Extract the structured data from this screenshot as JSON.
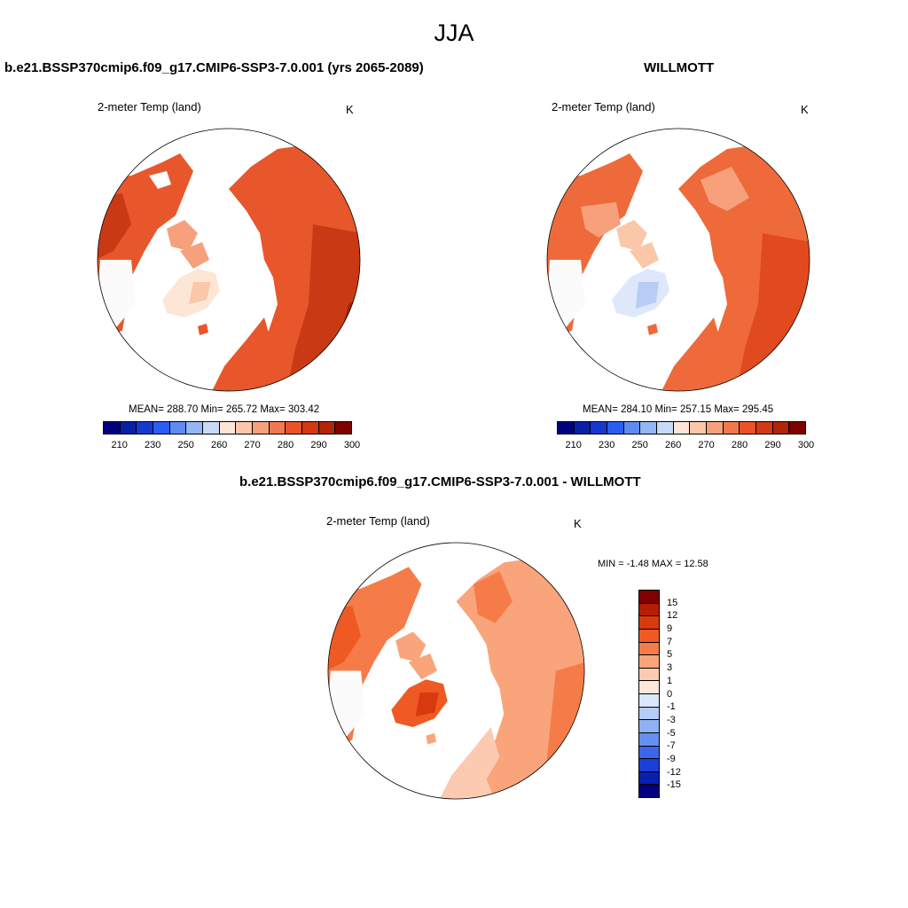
{
  "title": "JJA",
  "panels": {
    "model": {
      "title": "b.e21.BSSP370cmip6.f09_g17.CMIP6-SSP3-7.0.001 (yrs 2065-2089)",
      "variable": "2-meter Temp (land)",
      "units": "K",
      "stats": "MEAN= 288.70  Min= 265.72  Max= 303.42"
    },
    "obs": {
      "title": "WILLMOTT",
      "variable": "2-meter Temp (land)",
      "units": "K",
      "stats": "MEAN= 284.10  Min= 257.15  Max= 295.45"
    },
    "diff": {
      "title": "b.e21.BSSP370cmip6.f09_g17.CMIP6-SSP3-7.0.001 - WILLMOTT",
      "variable": "2-meter Temp (land)",
      "units": "K",
      "stats": "MIN =  -1.48 MAX =  12.58"
    }
  },
  "abs_colorbar": {
    "colors": [
      "#00007f",
      "#0a1fa8",
      "#1539d0",
      "#2a5ef0",
      "#5e8cf2",
      "#93b6f5",
      "#c8daf8",
      "#fde6d6",
      "#fbc7a9",
      "#f7a17c",
      "#f27850",
      "#ea5228",
      "#d33a13",
      "#b3250a",
      "#7f0000"
    ],
    "tick_labels": [
      "210",
      "230",
      "250",
      "260",
      "270",
      "280",
      "290",
      "300"
    ]
  },
  "diff_colorbar": {
    "colors": [
      "#7f0000",
      "#b51d06",
      "#d83a10",
      "#ef5a24",
      "#f57c48",
      "#f9a47b",
      "#fccab0",
      "#fde7da",
      "#dbe7fa",
      "#b6cdf6",
      "#8fb1f3",
      "#6690ef",
      "#3c66ea",
      "#1b3fd8",
      "#0a1fb0",
      "#00007f"
    ],
    "tick_labels": [
      "15",
      "12",
      "9",
      "7",
      "5",
      "3",
      "1",
      "0",
      "-1",
      "-3",
      "-5",
      "-7",
      "-9",
      "-12",
      "-15"
    ]
  }
}
